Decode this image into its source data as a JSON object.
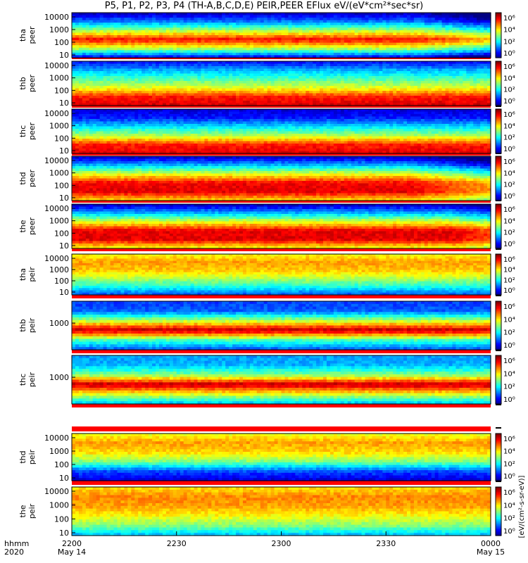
{
  "title": "P5, P1, P2, P3, P4 (TH-A,B,C,D,E) PEIR,PEER EFlux eV/(eV*cm²*sec*sr)",
  "time_axis": {
    "label_top": "hhmm",
    "label_bottom": "2020",
    "ticks": [
      {
        "t": 0,
        "label": "2200",
        "sub": "May 14"
      },
      {
        "t": 30,
        "label": "2230",
        "sub": ""
      },
      {
        "t": 60,
        "label": "2300",
        "sub": ""
      },
      {
        "t": 90,
        "label": "2330",
        "sub": ""
      },
      {
        "t": 120,
        "label": "0000",
        "sub": "May 15"
      }
    ]
  },
  "colorbar_label": "[eV/(cm²-s-sr-eV)]",
  "colors": {
    "frame": "#000000",
    "separator": "#ff0000"
  },
  "chart_data": [
    {
      "type": "heatmap",
      "probe": "tha",
      "species": "peer",
      "ylabels": [
        "10",
        "100",
        "1000",
        "10000"
      ],
      "cbar": [
        "10⁶",
        "10⁴",
        "10²",
        "10⁰"
      ],
      "bands": [
        0.1,
        0.55,
        0.88,
        0.55,
        0.25,
        0.05
      ],
      "fade_start": 0.82
    },
    {
      "type": "heatmap",
      "probe": "thb",
      "species": "peer",
      "ylabels": [
        "10",
        "100",
        "1000",
        "10000"
      ],
      "cbar": [
        "10⁶",
        "10⁴",
        "10²",
        "10⁰"
      ],
      "bands": [
        0.92,
        0.85,
        0.6,
        0.45,
        0.3,
        0.12
      ],
      "fade_start": 1.0
    },
    {
      "type": "heatmap",
      "probe": "thc",
      "species": "peer",
      "ylabels": [
        "10",
        "100",
        "1000",
        "10000"
      ],
      "cbar": [
        "10⁶",
        "10⁴",
        "10²",
        "10⁰"
      ],
      "bands": [
        0.9,
        0.85,
        0.55,
        0.35,
        0.15,
        0.08
      ],
      "fade_start": 1.0
    },
    {
      "type": "heatmap",
      "probe": "thd",
      "species": "peer",
      "ylabels": [
        "10",
        "100",
        "1000",
        "10000"
      ],
      "cbar": [
        "10⁶",
        "10⁴",
        "10²",
        "10⁰"
      ],
      "bands": [
        0.65,
        0.9,
        0.88,
        0.6,
        0.3,
        0.05
      ],
      "fade_start": 0.8
    },
    {
      "type": "heatmap",
      "probe": "the",
      "species": "peer",
      "ylabels": [
        "10",
        "100",
        "1000",
        "10000"
      ],
      "cbar": [
        "10⁶",
        "10⁴",
        "10²",
        "10⁰"
      ],
      "bands": [
        0.6,
        0.9,
        0.9,
        0.6,
        0.3,
        0.05
      ],
      "fade_start": 0.9
    },
    {
      "type": "heatmap",
      "probe": "tha",
      "species": "peir",
      "ylabels": [
        "10",
        "100",
        "1000",
        "10000"
      ],
      "cbar": [
        "10⁶",
        "10⁴",
        "10²",
        "10⁰"
      ],
      "bands": [
        0.2,
        0.4,
        0.55,
        0.68,
        0.72,
        0.62
      ],
      "fade_start": 1.0
    },
    {
      "type": "heatmap",
      "probe": "thb",
      "species": "peir",
      "ylabels": [
        "1000"
      ],
      "cbar": [
        "10⁶",
        "10⁴",
        "10²",
        "10⁰"
      ],
      "bands": [
        0.2,
        0.45,
        0.95,
        0.55,
        0.22,
        0.18
      ],
      "fade_start": 1.0
    },
    {
      "type": "heatmap",
      "probe": "thc",
      "species": "peir",
      "ylabels": [
        "1000"
      ],
      "cbar": [
        "10⁶",
        "10⁴",
        "10²",
        "10⁰"
      ],
      "bands": [
        0.3,
        0.6,
        0.95,
        0.5,
        0.3,
        0.28
      ],
      "fade_start": 1.0
    },
    {
      "type": "heatmap",
      "probe": "thd",
      "species": "peir",
      "ylabels": [
        "10",
        "100",
        "1000",
        "10000"
      ],
      "cbar": [
        "10⁶",
        "10⁴",
        "10²",
        "10⁰"
      ],
      "bands": [
        0.08,
        0.2,
        0.5,
        0.66,
        0.72,
        0.6
      ],
      "fade_start": 1.0
    },
    {
      "type": "heatmap",
      "probe": "the",
      "species": "peir",
      "ylabels": [
        "10",
        "100",
        "1000",
        "10000"
      ],
      "cbar": [
        "10⁶",
        "10⁴",
        "10²",
        "10⁰"
      ],
      "bands": [
        0.3,
        0.5,
        0.62,
        0.72,
        0.74,
        0.65
      ],
      "fade_start": 1.0
    }
  ]
}
